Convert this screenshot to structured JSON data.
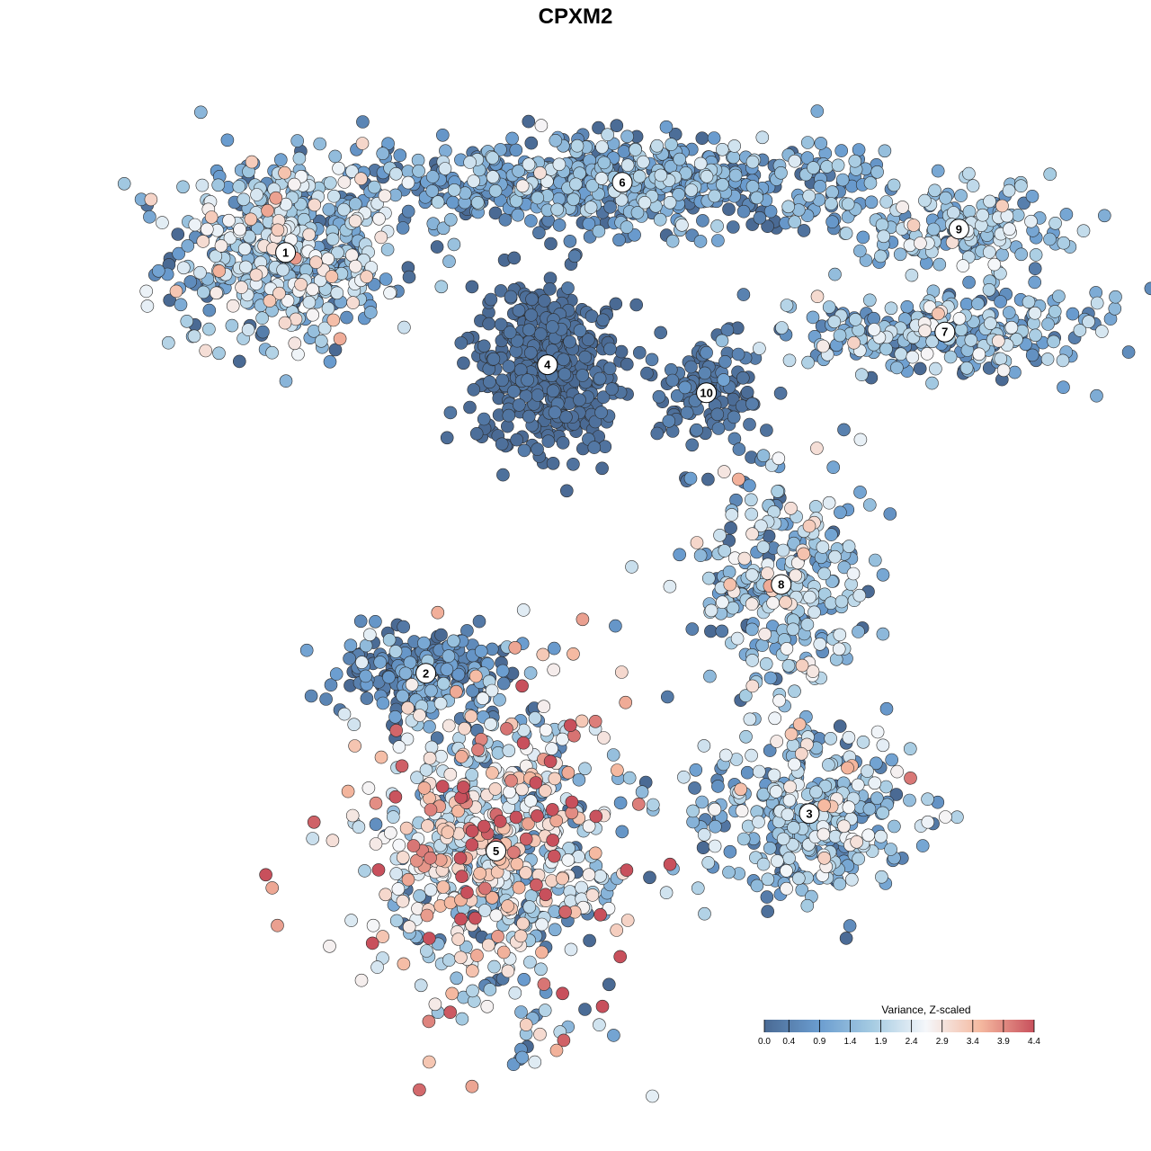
{
  "chart_data": {
    "type": "scatter",
    "title": "CPXM2",
    "xlabel": "",
    "ylabel": "",
    "grid": false,
    "legend": {
      "title": "Variance, Z-scaled",
      "position": "bottom-right",
      "ticks": [
        "0.0",
        "0.4",
        "0.9",
        "1.4",
        "1.9",
        "2.4",
        "2.9",
        "3.4",
        "3.9",
        "4.4"
      ],
      "range": [
        0,
        4.4
      ],
      "colors": [
        "#4a6a94",
        "#6a9ccf",
        "#a5cbe2",
        "#f5f7fa",
        "#f5b9a0",
        "#c8505c"
      ]
    },
    "clusters": [
      {
        "label": "1",
        "x": -0.62,
        "y": 0.71,
        "mean_value": 1.5,
        "spread_x": 0.12,
        "spread_y": 0.1,
        "n": 520,
        "value_spread": 0.9
      },
      {
        "label": "2",
        "x": -0.32,
        "y": -0.19,
        "mean_value": 0.4,
        "spread_x": 0.1,
        "spread_y": 0.05,
        "n": 220,
        "value_spread": 0.6
      },
      {
        "label": "3",
        "x": 0.5,
        "y": -0.49,
        "mean_value": 1.5,
        "spread_x": 0.11,
        "spread_y": 0.09,
        "n": 360,
        "value_spread": 0.8
      },
      {
        "label": "4",
        "x": -0.06,
        "y": 0.47,
        "mean_value": 0.05,
        "spread_x": 0.08,
        "spread_y": 0.09,
        "n": 420,
        "value_spread": 0.1
      },
      {
        "label": "5",
        "x": -0.17,
        "y": -0.57,
        "mean_value": 2.2,
        "spread_x": 0.14,
        "spread_y": 0.17,
        "n": 700,
        "value_spread": 1.2
      },
      {
        "label": "6",
        "x": 0.1,
        "y": 0.86,
        "mean_value": 0.9,
        "spread_x": 0.28,
        "spread_y": 0.05,
        "n": 620,
        "value_spread": 0.7
      },
      {
        "label": "7",
        "x": 0.79,
        "y": 0.54,
        "mean_value": 1.3,
        "spread_x": 0.17,
        "spread_y": 0.05,
        "n": 260,
        "value_spread": 0.8
      },
      {
        "label": "8",
        "x": 0.44,
        "y": 0.0,
        "mean_value": 1.6,
        "spread_x": 0.1,
        "spread_y": 0.12,
        "n": 280,
        "value_spread": 0.9
      },
      {
        "label": "9",
        "x": 0.82,
        "y": 0.76,
        "mean_value": 1.6,
        "spread_x": 0.11,
        "spread_y": 0.04,
        "n": 160,
        "value_spread": 0.6
      },
      {
        "label": "10",
        "x": 0.28,
        "y": 0.41,
        "mean_value": 0.15,
        "spread_x": 0.06,
        "spread_y": 0.06,
        "n": 120,
        "value_spread": 0.2
      }
    ]
  }
}
